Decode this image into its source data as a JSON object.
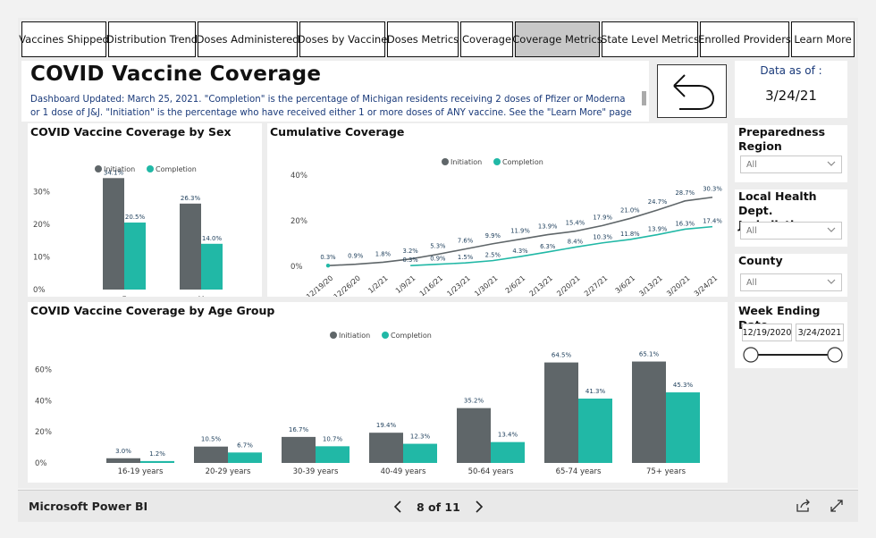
{
  "nav": {
    "tabs": [
      {
        "label": "Vaccines Shipped",
        "active": false
      },
      {
        "label": "Distribution Trend",
        "active": false
      },
      {
        "label": "Doses Administered",
        "active": false
      },
      {
        "label": "Doses by Vaccine",
        "active": false
      },
      {
        "label": "Doses Metrics",
        "active": false
      },
      {
        "label": "Coverage",
        "active": false
      },
      {
        "label": "Coverage Metrics",
        "active": true
      },
      {
        "label": "State Level Metrics",
        "active": false
      },
      {
        "label": "Enrolled Providers",
        "active": false
      },
      {
        "label": "Learn More",
        "active": false
      }
    ]
  },
  "header": {
    "title": "COVID Vaccine Coverage",
    "description": "Dashboard Updated: March 25, 2021. \"Completion\" is the percentage of Michigan residents receiving 2 doses of Pfizer or Moderna or 1 dose of J&J. \"Initiation\" is the percentage who have received either 1 or more doses of ANY vaccine. See the \"Learn More\" page to learn",
    "back_icon": "back-arrow-icon"
  },
  "asof": {
    "label": "Data as of :",
    "date": "3/24/21"
  },
  "colors": {
    "initiation": "#5f6669",
    "completion": "#21b8a6",
    "label_text": "#1c3d5a"
  },
  "legend": {
    "initiation": "Initiation",
    "completion": "Completion"
  },
  "sex_chart": {
    "title": "COVID Vaccine Coverage by Sex"
  },
  "cumulative_chart": {
    "title": "Cumulative Coverage"
  },
  "age_chart": {
    "title": "COVID Vaccine Coverage by Age Group"
  },
  "chart_data": [
    {
      "type": "bar",
      "title": "COVID Vaccine Coverage by Sex",
      "categories": [
        "F",
        "M"
      ],
      "series": [
        {
          "name": "Initiation",
          "values": [
            34.1,
            26.3
          ]
        },
        {
          "name": "Completion",
          "values": [
            20.5,
            14.0
          ]
        }
      ],
      "ylim": [
        0,
        35
      ],
      "yticks": [
        0,
        10,
        20,
        30
      ],
      "ytick_labels": [
        "0%",
        "10%",
        "20%",
        "30%"
      ],
      "data_labels": {
        "Initiation": [
          "34.1%",
          "26.3%"
        ],
        "Completion": [
          "20.5%",
          "14.0%"
        ]
      },
      "legend": "top-center",
      "grid": false
    },
    {
      "type": "line",
      "title": "Cumulative Coverage",
      "x": [
        "12/19/20",
        "12/26/20",
        "1/2/21",
        "1/9/21",
        "1/16/21",
        "1/23/21",
        "1/30/21",
        "2/6/21",
        "2/13/21",
        "2/20/21",
        "2/27/21",
        "3/6/21",
        "3/13/21",
        "3/20/21",
        "3/24/21"
      ],
      "series": [
        {
          "name": "Initiation",
          "values": [
            0.3,
            0.9,
            1.8,
            3.2,
            5.3,
            7.6,
            9.9,
            11.9,
            13.9,
            15.4,
            17.9,
            21.0,
            24.7,
            28.7,
            30.3
          ]
        },
        {
          "name": "Completion",
          "values": [
            null,
            null,
            null,
            0.3,
            0.9,
            1.5,
            2.5,
            4.3,
            6.3,
            8.4,
            10.3,
            11.8,
            13.9,
            16.3,
            17.4
          ]
        }
      ],
      "data_labels": {
        "Initiation": [
          "0.3%",
          "0.9%",
          "1.8%",
          "3.2%",
          "5.3%",
          "7.6%",
          "9.9%",
          "11.9%",
          "13.9%",
          "15.4%",
          "17.9%",
          "21.0%",
          "24.7%",
          "28.7%",
          "30.3%"
        ],
        "Completion": [
          null,
          null,
          null,
          "0.3%",
          "0.9%",
          "1.5%",
          "2.5%",
          "4.3%",
          "6.3%",
          "8.4%",
          "10.3%",
          "11.8%",
          "13.9%",
          "16.3%",
          "17.4%"
        ]
      },
      "ylim": [
        0,
        40
      ],
      "yticks": [
        0,
        20,
        40
      ],
      "ytick_labels": [
        "0%",
        "20%",
        "40%"
      ],
      "legend": "top-center",
      "grid": false
    },
    {
      "type": "bar",
      "title": "COVID Vaccine Coverage by Age Group",
      "categories": [
        "16-19 years",
        "20-29 years",
        "30-39 years",
        "40-49 years",
        "50-64 years",
        "65-74 years",
        "75+ years"
      ],
      "series": [
        {
          "name": "Initiation",
          "values": [
            3.0,
            10.5,
            16.7,
            19.4,
            35.2,
            64.5,
            65.1
          ]
        },
        {
          "name": "Completion",
          "values": [
            1.2,
            6.7,
            10.7,
            12.3,
            13.4,
            41.3,
            45.3
          ]
        }
      ],
      "data_labels": {
        "Initiation": [
          "3.0%",
          "10.5%",
          "16.7%",
          "19.4%",
          "35.2%",
          "64.5%",
          "65.1%"
        ],
        "Completion": [
          "1.2%",
          "6.7%",
          "10.7%",
          "12.3%",
          "13.4%",
          "41.3%",
          "45.3%"
        ]
      },
      "ylim": [
        0,
        70
      ],
      "yticks": [
        0,
        20,
        40,
        60
      ],
      "ytick_labels": [
        "0%",
        "20%",
        "40%",
        "60%"
      ],
      "legend": "top-center",
      "grid": false
    }
  ],
  "slicers": {
    "region": {
      "title": "Preparedness Region",
      "value": "All"
    },
    "lhd": {
      "title": "Local Health Dept. Jurisdiction",
      "value": "All"
    },
    "county": {
      "title": "County",
      "value": "All"
    },
    "week": {
      "title": "Week Ending Date",
      "start": "12/19/2020",
      "end": "3/24/2021",
      "range": [
        0,
        1
      ]
    }
  },
  "footer": {
    "brand": "Microsoft Power BI",
    "page_label": "8 of 11",
    "prev_icon": "chevron-left-icon",
    "next_icon": "chevron-right-icon",
    "share_icon": "share-icon",
    "fullscreen_icon": "fullscreen-icon"
  }
}
